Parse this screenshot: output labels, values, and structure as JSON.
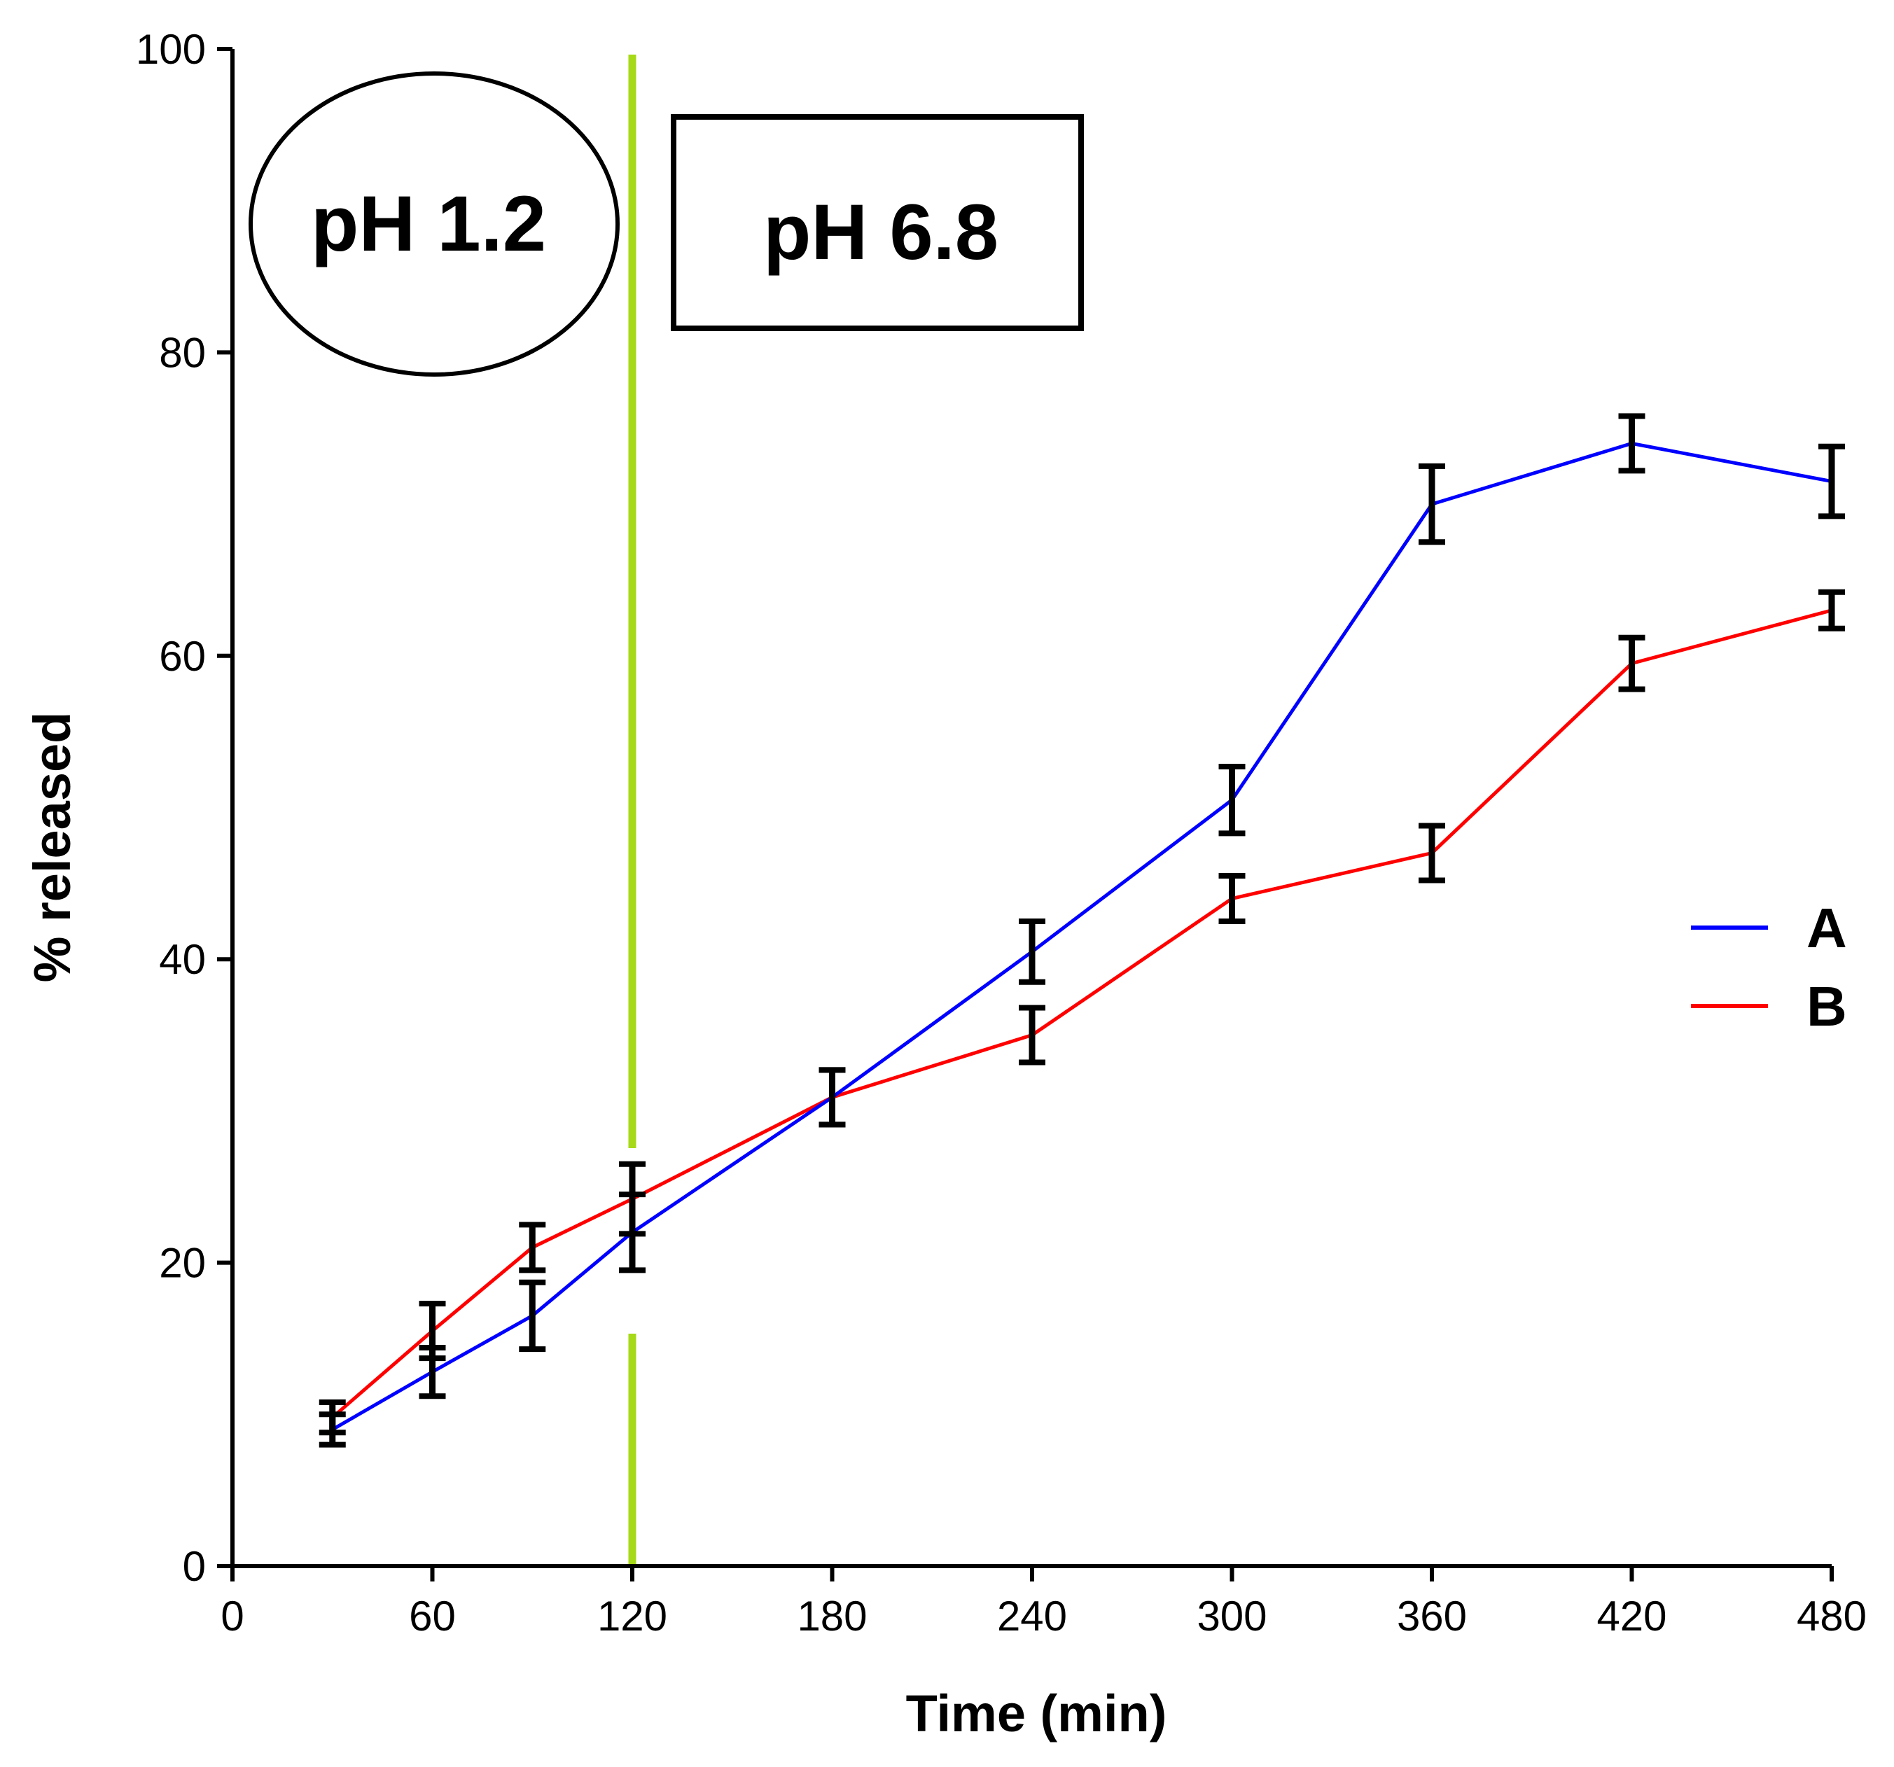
{
  "chart_data": {
    "type": "line",
    "title": "",
    "xlabel": "Time (min)",
    "ylabel": "% released",
    "xlim": [
      0,
      480
    ],
    "ylim": [
      0,
      100
    ],
    "xticks": [
      0,
      60,
      120,
      180,
      240,
      300,
      360,
      420,
      480
    ],
    "yticks": [
      0,
      20,
      40,
      60,
      80,
      100
    ],
    "grid": false,
    "legend_position": "right",
    "series": [
      {
        "name": "A",
        "color": "#0000ff",
        "x": [
          30,
          60,
          90,
          120,
          180,
          240,
          300,
          360,
          420,
          480
        ],
        "y": [
          9.0,
          12.8,
          16.5,
          22.0,
          30.9,
          40.5,
          50.5,
          70.0,
          74.0,
          71.5
        ],
        "err": [
          1.0,
          1.6,
          2.2,
          2.5,
          1.8,
          2.0,
          2.2,
          2.5,
          1.8,
          2.3
        ]
      },
      {
        "name": "B",
        "color": "#ff0000",
        "x": [
          30,
          60,
          90,
          120,
          180,
          240,
          300,
          360,
          420,
          480
        ],
        "y": [
          9.8,
          15.5,
          21.0,
          24.2,
          30.9,
          35.0,
          44.0,
          47.0,
          59.5,
          63.0
        ],
        "err": [
          1.0,
          1.8,
          1.5,
          2.3,
          1.8,
          1.8,
          1.5,
          1.8,
          1.7,
          1.2
        ]
      }
    ],
    "vline": {
      "x": 120,
      "color": "#a6d916"
    },
    "annotations": [
      {
        "text": "pH 1.2",
        "shape": "ellipse"
      },
      {
        "text": "pH 6.8",
        "shape": "rectangle"
      }
    ]
  }
}
